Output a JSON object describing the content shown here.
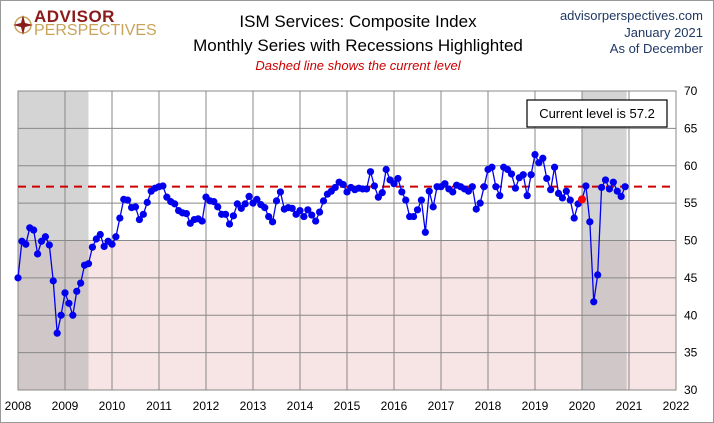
{
  "logo": {
    "line1": "ADVISOR",
    "line2": "PERSPECTIVES"
  },
  "header": {
    "site": "advisorperspectives.com",
    "date": "January  2021",
    "asof": "As of December"
  },
  "chart_data": {
    "type": "line",
    "title": "ISM Services: Composite Index",
    "subtitle": "Monthly Series with Recessions Highlighted",
    "annotation": "Dashed line shows the current level",
    "callout": "Current level is 57.2",
    "current_level": 57.2,
    "xlim": [
      2008,
      2022
    ],
    "ylim": [
      30,
      70
    ],
    "x_ticks": [
      "2008",
      "2009",
      "2010",
      "2011",
      "2012",
      "2013",
      "2014",
      "2015",
      "2016",
      "2017",
      "2018",
      "2019",
      "2020",
      "2021",
      "2022"
    ],
    "y_ticks": [
      "30",
      "35",
      "40",
      "45",
      "50",
      "55",
      "60",
      "65",
      "70"
    ],
    "start": "2008-01",
    "frequency": "monthly",
    "recessions": [
      [
        2007.92,
        2009.5
      ],
      [
        2020.0,
        2020.95
      ]
    ],
    "contraction_threshold": 50,
    "highlight_point": {
      "x": "2020-01",
      "value": 55.5
    },
    "values": [
      45,
      49.9,
      49.5,
      51.7,
      51.4,
      48.2,
      49.9,
      50.5,
      49.4,
      44.6,
      37.6,
      40.0,
      43,
      41.6,
      40.0,
      43.2,
      44.3,
      46.7,
      46.9,
      49.1,
      50.2,
      50.8,
      49.2,
      49.9,
      49.5,
      50.5,
      53.0,
      55.5,
      55.4,
      54.4,
      54.5,
      52.8,
      53.5,
      55.1,
      56.6,
      57.0,
      57.2,
      57.3,
      55.8,
      55.2,
      54.9,
      54.0,
      53.7,
      53.6,
      52.3,
      52.8,
      52.9,
      52.6,
      55.8,
      55.3,
      55.2,
      54.5,
      53.5,
      53.5,
      52.2,
      53.3,
      54.9,
      54.3,
      54.9,
      55.9,
      55.0,
      55.5,
      54.8,
      54.4,
      53.2,
      52.5,
      55.3,
      56.5,
      54.2,
      54.4,
      54.3,
      53.5,
      54.0,
      53.2,
      54.1,
      53.4,
      52.6,
      53.8,
      55.3,
      56.2,
      56.6,
      57.1,
      57.8,
      57.5,
      56.5,
      57.1,
      56.8,
      57.0,
      56.9,
      56.9,
      59.2,
      57.3,
      55.8,
      56.4,
      59.5,
      58.1,
      57.6,
      58.3,
      56.5,
      55.4,
      53.2,
      53.2,
      54.1,
      55.4,
      51.1,
      56.6,
      54.5,
      57.2,
      57.2,
      57.6,
      56.9,
      56.5,
      57.4,
      57.2,
      56.9,
      56.6,
      57.2,
      54.2,
      55.0,
      57.2,
      59.5,
      59.8,
      57.2,
      56.0,
      59.8,
      59.5,
      58.9,
      57.0,
      58.4,
      58.8,
      56.0,
      58.8,
      61.5,
      60.4,
      61.0,
      58.3,
      56.8,
      59.8,
      56.3,
      55.7,
      56.6,
      55.4,
      53.0,
      54.9,
      55.5,
      57.3,
      52.5,
      41.8,
      45.4,
      57.1,
      58.1,
      56.9,
      57.8,
      56.6,
      55.9,
      57.2
    ]
  }
}
